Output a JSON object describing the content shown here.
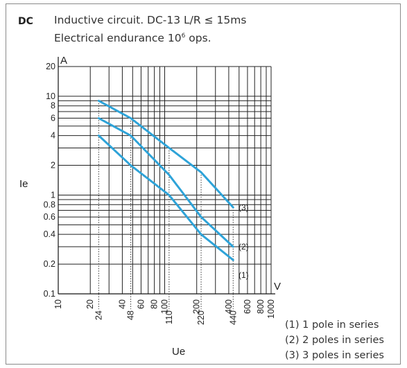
{
  "header": {
    "tag": "DC",
    "line1": "Inductive circuit. DC-13 L/R ≤ 15ms",
    "line2_text": "Electrical endurance 10",
    "line2_sup": "6",
    "line2_tail": " ops."
  },
  "legend": [
    "(1) 1 pole in series",
    "(2) 2 poles in series",
    "(3) 3 poles in series"
  ],
  "chart_data": {
    "type": "line",
    "title": "Inductive circuit. DC-13 L/R ≤ 15ms",
    "xlabel": "Ue",
    "ylabel": "Ie",
    "x_unit": "V",
    "y_unit": "A",
    "x_scale": "log",
    "y_scale": "log",
    "xlim": [
      10,
      1000
    ],
    "ylim": [
      0.1,
      20
    ],
    "grid": true,
    "x_ticks": [
      "10",
      "20",
      "40",
      "60",
      "80",
      "100",
      "200",
      "400",
      "600",
      "800",
      "1000"
    ],
    "x_tick_values": [
      10,
      20,
      40,
      60,
      80,
      100,
      200,
      400,
      600,
      800,
      1000
    ],
    "x_ticks_highlighted": [
      "24",
      "48",
      "110",
      "220",
      "440"
    ],
    "x_ticks_highlighted_values": [
      24,
      48,
      110,
      220,
      440
    ],
    "y_ticks": [
      "0.1",
      "0.2",
      "0.4",
      "0.6",
      "0.8",
      "1",
      "2",
      "4",
      "6",
      "8",
      "10",
      "20"
    ],
    "y_tick_values": [
      0.1,
      0.2,
      0.4,
      0.6,
      0.8,
      1,
      2,
      4,
      6,
      8,
      10,
      20
    ],
    "series": [
      {
        "name": "(1)",
        "x": [
          24,
          48,
          110,
          220,
          440
        ],
        "y": [
          4,
          2,
          1,
          0.4,
          0.22
        ]
      },
      {
        "name": "(2)",
        "x": [
          24,
          48,
          110,
          220,
          440
        ],
        "y": [
          6,
          4,
          1.6,
          0.6,
          0.3
        ]
      },
      {
        "name": "(3)",
        "x": [
          24,
          48,
          110,
          220,
          440
        ],
        "y": [
          9,
          6,
          3,
          1.7,
          0.75
        ]
      }
    ],
    "series_color": "#2ea3d8",
    "grid_color": "#222222"
  }
}
